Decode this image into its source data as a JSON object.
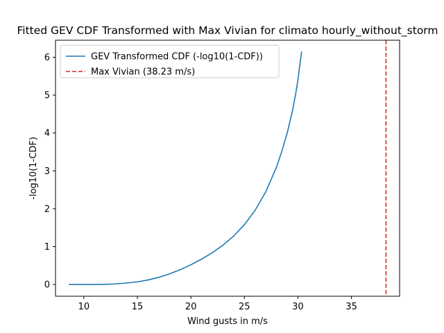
{
  "chart_data": {
    "type": "line",
    "title": "Fitted GEV CDF Transformed with Max Vivian for climato hourly_without_storm",
    "xlabel": "Wind gusts in m/s",
    "ylabel": "-log10(1-CDF)",
    "xlim": [
      7.35,
      39.5
    ],
    "ylim": [
      -0.31,
      6.45
    ],
    "xticks": [
      10,
      15,
      20,
      25,
      30,
      35
    ],
    "yticks": [
      0,
      1,
      2,
      3,
      4,
      5,
      6
    ],
    "grid": false,
    "legend_position": "upper-left",
    "series": [
      {
        "name": "GEV Transformed CDF (-log10(1-CDF))",
        "kind": "line",
        "color": "#1f77b4",
        "x": [
          8.6,
          10,
          11,
          12,
          13,
          14,
          15,
          16,
          17,
          18,
          19,
          20,
          21,
          22,
          23,
          24,
          25,
          26,
          27,
          28,
          28.5,
          29,
          29.5,
          29.8,
          30.0,
          30.2,
          30.35
        ],
        "y": [
          0.0,
          0.0,
          0.0,
          0.005,
          0.015,
          0.04,
          0.07,
          0.12,
          0.19,
          0.28,
          0.39,
          0.52,
          0.67,
          0.84,
          1.04,
          1.28,
          1.58,
          1.96,
          2.45,
          3.1,
          3.52,
          4.0,
          4.6,
          5.05,
          5.4,
          5.85,
          6.15
        ]
      },
      {
        "name": "Max Vivian (38.23 m/s)",
        "kind": "vline",
        "color": "#d62728",
        "x": 38.23
      }
    ]
  }
}
